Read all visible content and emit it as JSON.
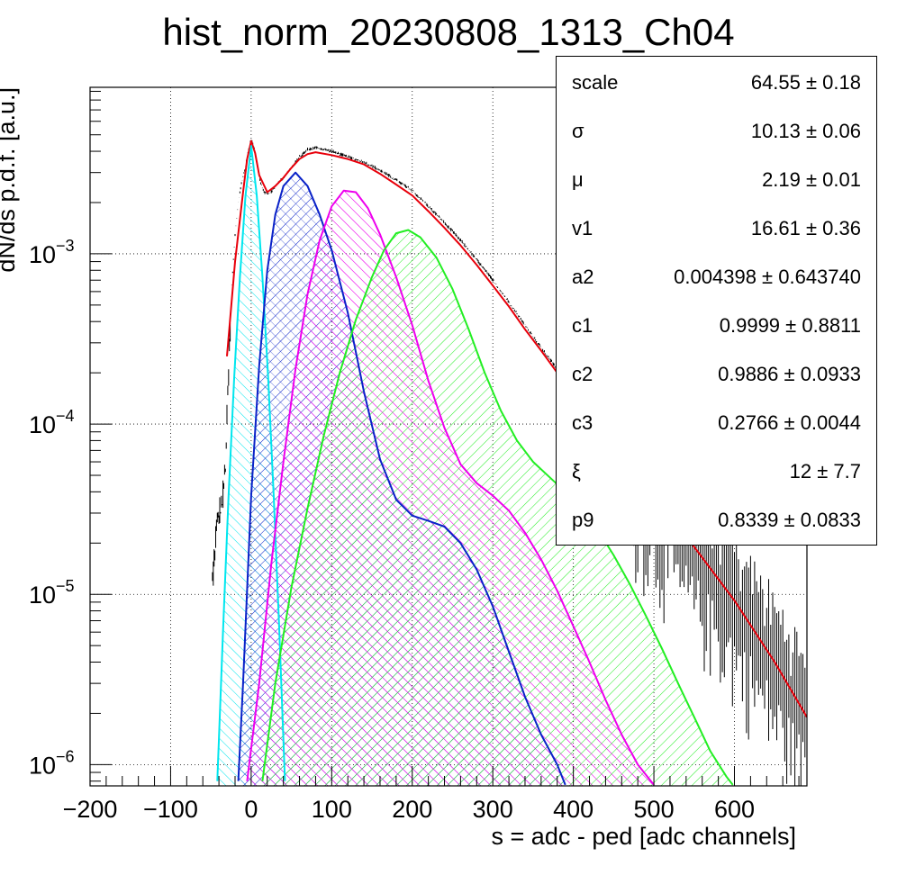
{
  "chart_data": {
    "type": "line",
    "title": "hist_norm_20230808_1313_Ch04",
    "xlabel": "s = adc - ped [adc channels]",
    "ylabel": "dN/ds p.d.f. [a.u.]",
    "xlim": [
      -200,
      690
    ],
    "ylim": [
      7.5e-07,
      0.0095
    ],
    "log_y": true,
    "grid": true,
    "x_ticks": [
      "−200",
      "−100",
      "0",
      "100",
      "200",
      "300",
      "400",
      "500",
      "600"
    ],
    "x_tick_values": [
      -200,
      -100,
      0,
      100,
      200,
      300,
      400,
      500,
      600
    ],
    "y_ticks": [
      {
        "base": "10",
        "exp": "−6",
        "value": 1e-06
      },
      {
        "base": "10",
        "exp": "−5",
        "value": 1e-05
      },
      {
        "base": "10",
        "exp": "−4",
        "value": 0.0001
      },
      {
        "base": "10",
        "exp": "−3",
        "value": 0.001
      }
    ],
    "series": [
      {
        "key": "total_fit",
        "color": "#e8000b",
        "hatch": false,
        "x": [
          -30,
          -20,
          -10,
          -5,
          0,
          5,
          10,
          20,
          30,
          40,
          50,
          60,
          70,
          80,
          100,
          120,
          140,
          160,
          180,
          200,
          220,
          240,
          260,
          280,
          300,
          320,
          340,
          360,
          380,
          400,
          450,
          500,
          550,
          600,
          650,
          690
        ],
        "y": [
          0.00025,
          0.0009,
          0.0023,
          0.0036,
          0.0046,
          0.0039,
          0.0029,
          0.0023,
          0.0025,
          0.0028,
          0.0032,
          0.0036,
          0.00385,
          0.00395,
          0.0038,
          0.0036,
          0.00335,
          0.00295,
          0.00255,
          0.0022,
          0.00178,
          0.00142,
          0.00112,
          0.00086,
          0.00065,
          0.00049,
          0.00036,
          0.00027,
          0.0002,
          0.00015,
          7.8e-05,
          3.9e-05,
          1.9e-05,
          9.2e-06,
          4e-06,
          1.9e-06
        ]
      },
      {
        "key": "pedestal",
        "color": "#00e6ee",
        "hatch": true,
        "x": [
          -42,
          -35,
          -28,
          -21,
          -14,
          -7,
          0,
          7,
          14,
          21,
          28,
          35,
          42
        ],
        "y": [
          8e-07,
          6e-06,
          3.8e-05,
          0.00019,
          0.00073,
          0.0022,
          0.0043,
          0.0022,
          0.00073,
          0.00019,
          3.8e-05,
          6e-06,
          8e-07
        ]
      },
      {
        "key": "component_1",
        "color": "#0a22c8",
        "hatch": true,
        "x": [
          -16,
          -10,
          0,
          10,
          20,
          30,
          40,
          55,
          70,
          85,
          100,
          120,
          140,
          160,
          180,
          200,
          220,
          240,
          260,
          280,
          300,
          320,
          340,
          360,
          380,
          390
        ],
        "y": [
          8e-07,
          3e-06,
          3.8e-05,
          0.00022,
          0.0008,
          0.0017,
          0.0025,
          0.003,
          0.0025,
          0.0017,
          0.00105,
          0.00045,
          0.000155,
          6.2e-05,
          3.6e-05,
          2.9e-05,
          2.7e-05,
          2.5e-05,
          2e-05,
          1.4e-05,
          8.5e-06,
          4.6e-06,
          2.5e-06,
          1.5e-06,
          1e-06,
          7.6e-07
        ]
      },
      {
        "key": "component_2",
        "color": "#ee00ee",
        "hatch": true,
        "x": [
          -5,
          10,
          25,
          40,
          55,
          70,
          85,
          100,
          115,
          130,
          145,
          160,
          180,
          200,
          220,
          240,
          260,
          280,
          300,
          320,
          340,
          360,
          380,
          400,
          420,
          440,
          460,
          480,
          500
        ],
        "y": [
          8e-07,
          3e-06,
          1.5e-05,
          6e-05,
          0.00021,
          0.00058,
          0.0012,
          0.0019,
          0.00235,
          0.0023,
          0.00185,
          0.0013,
          0.00073,
          0.00038,
          0.00018,
          9.5e-05,
          5.8e-05,
          4.5e-05,
          3.8e-05,
          3.1e-05,
          2.3e-05,
          1.6e-05,
          1.05e-05,
          6.5e-06,
          4e-06,
          2.4e-06,
          1.5e-06,
          1e-06,
          7.6e-07
        ]
      },
      {
        "key": "component_3",
        "color": "#22ee22",
        "hatch": true,
        "x": [
          14,
          30,
          50,
          70,
          90,
          110,
          130,
          150,
          165,
          180,
          195,
          210,
          230,
          250,
          270,
          290,
          310,
          330,
          350,
          370,
          390,
          410,
          430,
          450,
          470,
          490,
          510,
          530,
          550,
          570,
          590,
          598
        ],
        "y": [
          8e-07,
          3e-06,
          1.1e-05,
          3.2e-05,
          8.5e-05,
          0.0002,
          0.00041,
          0.00073,
          0.00105,
          0.00132,
          0.00138,
          0.00125,
          0.00095,
          0.00062,
          0.00036,
          0.0002,
          0.00012,
          8e-05,
          6e-05,
          4.9e-05,
          4e-05,
          3.2e-05,
          2.4e-05,
          1.7e-05,
          1.15e-05,
          7.5e-06,
          4.8e-06,
          3e-06,
          1.9e-06,
          1.2e-06,
          8.5e-07,
          7.6e-07
        ]
      }
    ],
    "histogram_envelope": {
      "x": [
        -48,
        -44,
        -40,
        -36,
        -32,
        -28,
        -24,
        -20,
        -16,
        -12,
        -8,
        -4,
        0,
        4,
        8,
        12,
        16,
        20,
        25,
        30,
        40,
        50,
        60,
        70,
        80,
        90,
        100,
        120,
        140,
        160,
        180,
        200,
        220,
        240,
        260,
        280,
        300,
        320,
        340,
        360,
        380
      ],
      "y": [
        1.2e-05,
        2.2e-05,
        3e-05,
        3.4e-05,
        5.5e-05,
        0.0002,
        0.00065,
        0.0013,
        0.002,
        0.0026,
        0.0031,
        0.0039,
        0.0047,
        0.0042,
        0.0032,
        0.0026,
        0.0023,
        0.00225,
        0.0023,
        0.0025,
        0.0028,
        0.0032,
        0.0037,
        0.0041,
        0.0042,
        0.0041,
        0.004,
        0.0037,
        0.00345,
        0.0031,
        0.0027,
        0.00235,
        0.0019,
        0.00152,
        0.0012,
        0.00092,
        0.0007,
        0.00052,
        0.00038,
        0.00028,
        0.00021
      ]
    },
    "histogram_noisy_tail": {
      "x_start": 470,
      "x_end": 690,
      "step": 2.5
    }
  },
  "stats": [
    {
      "name": "scale",
      "value": "64.55 ± 0.18"
    },
    {
      "name": "σ",
      "value": "10.13 ± 0.06"
    },
    {
      "name": "μ",
      "value": "2.19 ± 0.01"
    },
    {
      "name": "v1",
      "value": "16.61 ± 0.36"
    },
    {
      "name": "a2",
      "value": "0.004398 ± 0.643740"
    },
    {
      "name": "c1",
      "value": "0.9999 ± 0.8811"
    },
    {
      "name": "c2",
      "value": "0.9886 ± 0.0933"
    },
    {
      "name": "c3",
      "value": "0.2766 ± 0.0044"
    },
    {
      "name": "ξ",
      "value": "12 ± 7.7"
    },
    {
      "name": "p9",
      "value": "0.8339 ± 0.0833"
    }
  ]
}
